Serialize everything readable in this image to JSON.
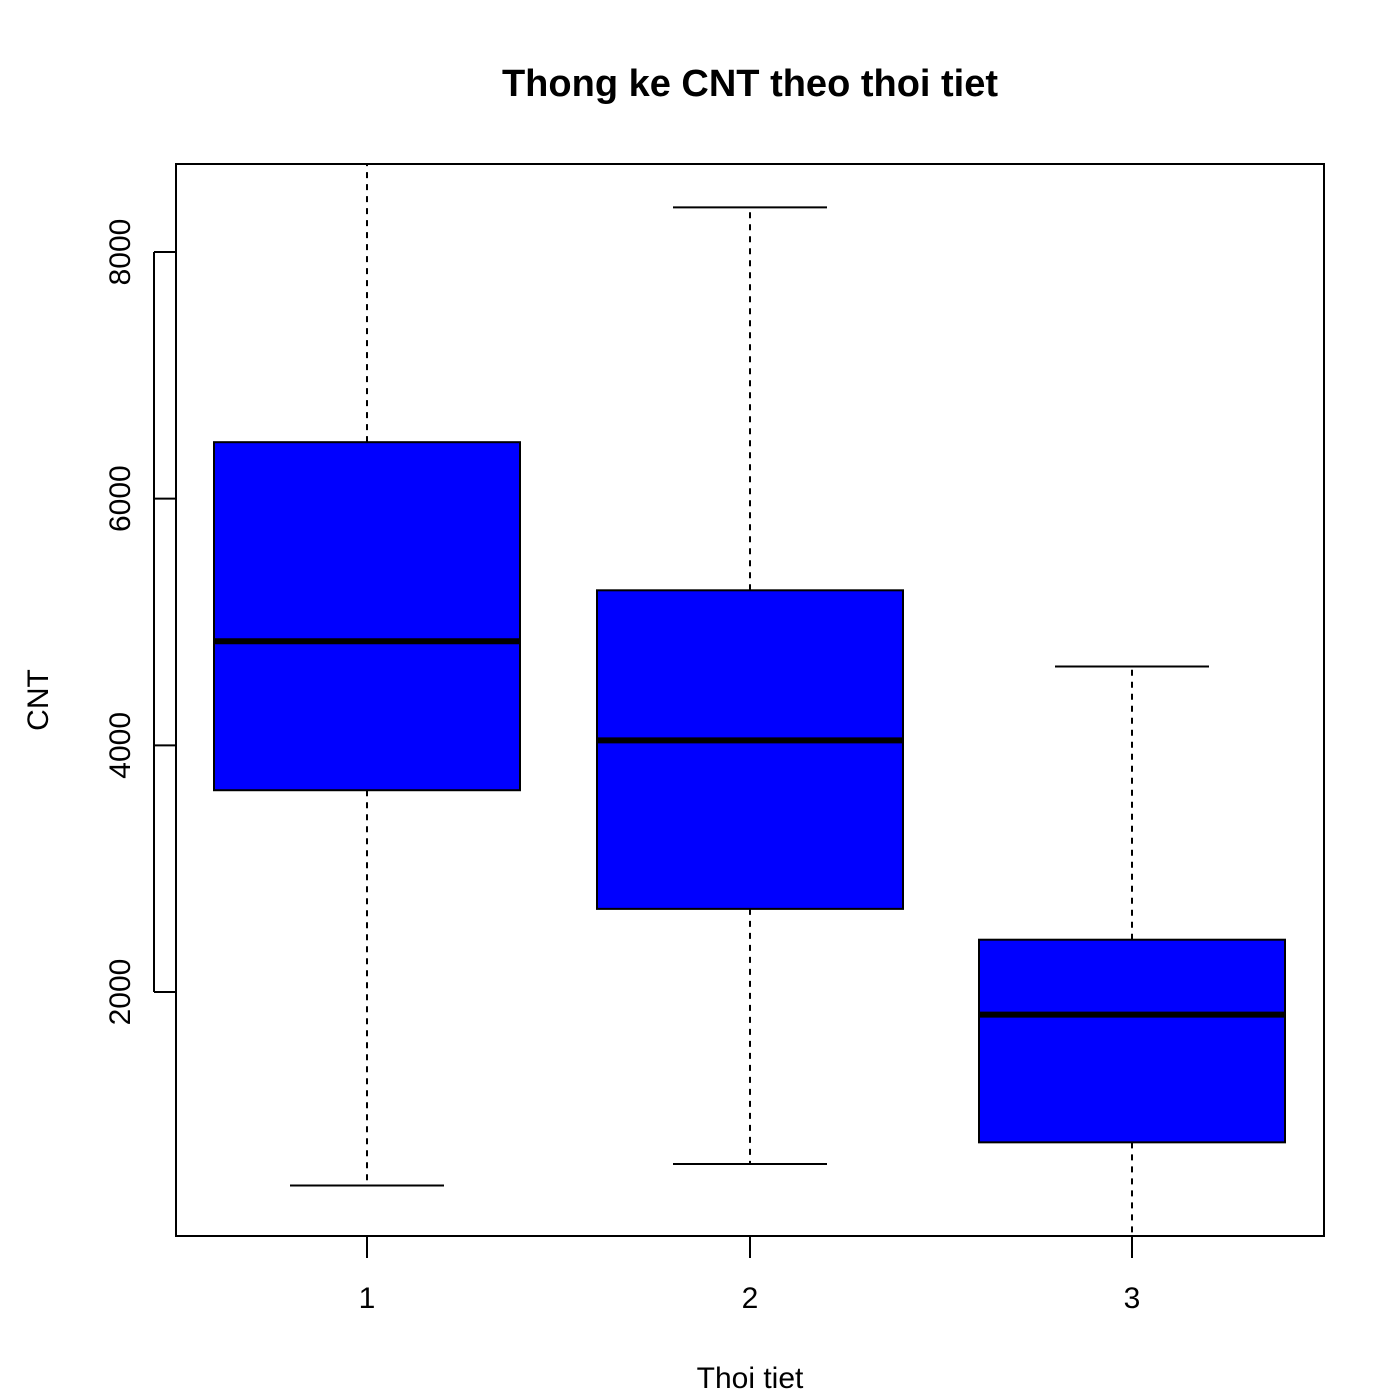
{
  "chart_data": {
    "type": "boxplot",
    "title": "Thong ke CNT theo thoi tiet",
    "xlabel": "Thoi tiet",
    "ylabel": "CNT",
    "categories": [
      "1",
      "2",
      "3"
    ],
    "y_ticks": [
      "2000",
      "4000",
      "6000",
      "8000"
    ],
    "ylim": [
      22,
      8714
    ],
    "grid": false,
    "box_fill": "#0000ff",
    "boxes": [
      {
        "category": "1",
        "lower_whisker": 431,
        "q1": 3636,
        "median": 4844,
        "q3": 6458,
        "upper_whisker": 8714
      },
      {
        "category": "2",
        "lower_whisker": 605,
        "q1": 2674,
        "median": 4040,
        "q3": 5257,
        "upper_whisker": 8362
      },
      {
        "category": "3",
        "lower_whisker": 22,
        "q1": 781,
        "median": 1817,
        "q3": 2424,
        "upper_whisker": 4639
      }
    ]
  }
}
